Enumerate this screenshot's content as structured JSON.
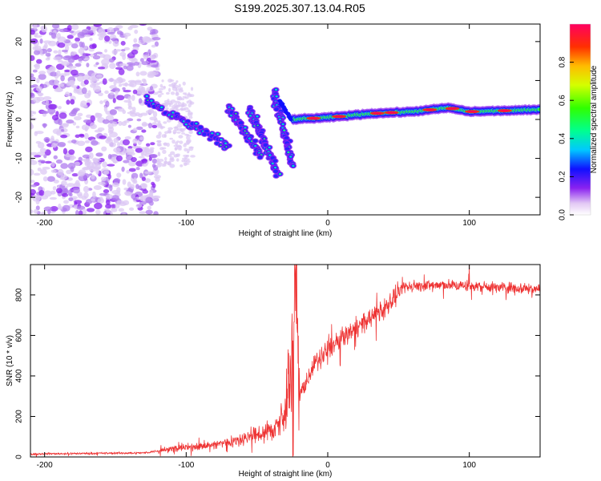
{
  "title": "S199.2025.307.13.04.R05",
  "chart_data": [
    {
      "type": "heatmap",
      "xlabel": "Height of straight line (km)",
      "ylabel": "Frequency (Hz)",
      "xlim": [
        -210,
        150
      ],
      "ylim": [
        -24.5,
        24.5
      ],
      "xticks": [
        "-200",
        "-100",
        "0",
        "100"
      ],
      "xtick_values": [
        -200,
        -100,
        0,
        100
      ],
      "yticks": [
        "-20",
        "-10",
        "0",
        "10",
        "20"
      ],
      "ytick_values": [
        -20,
        -10,
        0,
        10,
        20
      ],
      "colorbar": {
        "label": "Normalized spectral amplitude",
        "range": [
          0,
          1
        ],
        "ticks": [
          "0.0",
          "0.2",
          "0.4",
          "0.6",
          "0.8"
        ],
        "tick_values": [
          0.0,
          0.2,
          0.4,
          0.6,
          0.8
        ]
      },
      "features": {
        "noise_region_x": [
          -210,
          -120
        ],
        "descending_streaks": [
          {
            "x0": -128,
            "f0": 5,
            "x1": -70,
            "f1": -7
          },
          {
            "x0": -70,
            "f0": 3,
            "x1": -48,
            "f1": -9
          },
          {
            "x0": -55,
            "f0": 3,
            "x1": -35,
            "f1": -14
          },
          {
            "x0": -38,
            "f0": 7,
            "x1": -25,
            "f1": -12
          }
        ],
        "carrier_line": [
          {
            "x": -25,
            "f": 0.0
          },
          {
            "x": 0,
            "f": 0.5
          },
          {
            "x": 30,
            "f": 1.5
          },
          {
            "x": 60,
            "f": 2.0
          },
          {
            "x": 85,
            "f": 3.0
          },
          {
            "x": 100,
            "f": 2.0
          },
          {
            "x": 150,
            "f": 2.5
          }
        ]
      }
    },
    {
      "type": "line",
      "series": [
        {
          "name": "SNR",
          "color": "#ee3333"
        }
      ],
      "xlabel": "Height of straight line (km)",
      "ylabel": "SNR (10 * v/v)",
      "xlim": [
        -210,
        150
      ],
      "ylim": [
        0,
        950
      ],
      "xticks": [
        "-200",
        "-100",
        "0",
        "100"
      ],
      "xtick_values": [
        -200,
        -100,
        0,
        100
      ],
      "yticks": [
        "0",
        "200",
        "400",
        "600",
        "800"
      ],
      "ytick_values": [
        0,
        200,
        400,
        600,
        800
      ],
      "trend": [
        {
          "x": -210,
          "y": 15
        },
        {
          "x": -130,
          "y": 20
        },
        {
          "x": -110,
          "y": 40
        },
        {
          "x": -80,
          "y": 60
        },
        {
          "x": -60,
          "y": 90
        },
        {
          "x": -40,
          "y": 130
        },
        {
          "x": -30,
          "y": 200
        },
        {
          "x": -23,
          "y": 700
        },
        {
          "x": -22,
          "y": 880
        },
        {
          "x": -20,
          "y": 300
        },
        {
          "x": -10,
          "y": 450
        },
        {
          "x": 0,
          "y": 530
        },
        {
          "x": 20,
          "y": 640
        },
        {
          "x": 40,
          "y": 730
        },
        {
          "x": 55,
          "y": 840
        },
        {
          "x": 75,
          "y": 850
        },
        {
          "x": 100,
          "y": 845
        },
        {
          "x": 150,
          "y": 830
        }
      ],
      "peaks": [
        {
          "x": -23,
          "y": 885
        },
        {
          "x": 100,
          "y": 950
        }
      ]
    }
  ]
}
